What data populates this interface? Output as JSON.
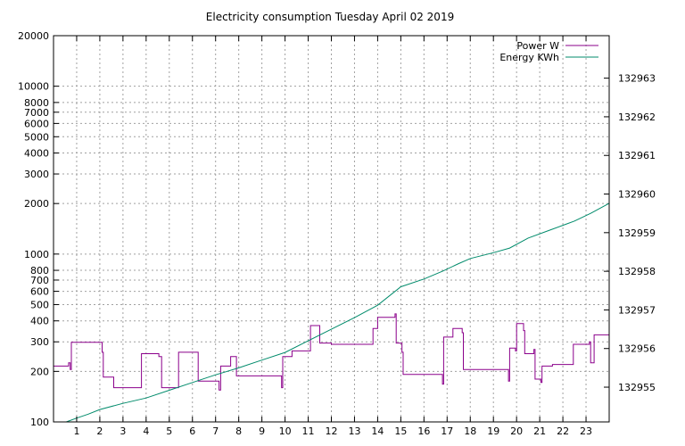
{
  "chart_data": {
    "type": "line",
    "title": "Electricity consumption Tuesday April 02 2019",
    "xlabel": "",
    "ylabel": "",
    "y2label": "",
    "grid": true,
    "legend_position": "top-right",
    "xlim": [
      0,
      24
    ],
    "x_ticks": [
      1,
      2,
      3,
      4,
      5,
      6,
      7,
      8,
      9,
      10,
      11,
      12,
      13,
      14,
      15,
      16,
      17,
      18,
      19,
      20,
      21,
      22,
      23
    ],
    "ylim": [
      100,
      20000
    ],
    "y_scale": "log",
    "y_ticks": [
      100,
      200,
      300,
      400,
      500,
      600,
      700,
      800,
      1000,
      2000,
      3000,
      4000,
      5000,
      6000,
      7000,
      8000,
      10000,
      20000
    ],
    "y2lim": [
      132954.1,
      132964.1
    ],
    "y2_ticks": [
      132955,
      132956,
      132957,
      132958,
      132959,
      132960,
      132961,
      132962,
      132963
    ],
    "series": [
      {
        "name": "Power W",
        "color": "#8b008b",
        "axis": "y",
        "step": true,
        "points": [
          [
            0,
            215
          ],
          [
            0.65,
            215
          ],
          [
            0.65,
            225
          ],
          [
            0.72,
            225
          ],
          [
            0.72,
            205
          ],
          [
            0.77,
            205
          ],
          [
            0.77,
            298
          ],
          [
            2.1,
            298
          ],
          [
            2.1,
            260
          ],
          [
            2.15,
            260
          ],
          [
            2.15,
            185
          ],
          [
            2.6,
            185
          ],
          [
            2.6,
            160
          ],
          [
            3.8,
            160
          ],
          [
            3.8,
            255
          ],
          [
            4.55,
            255
          ],
          [
            4.55,
            245
          ],
          [
            4.67,
            245
          ],
          [
            4.67,
            160
          ],
          [
            5.4,
            160
          ],
          [
            5.4,
            260
          ],
          [
            6.25,
            260
          ],
          [
            6.25,
            175
          ],
          [
            7.15,
            175
          ],
          [
            7.15,
            155
          ],
          [
            7.22,
            155
          ],
          [
            7.22,
            215
          ],
          [
            7.65,
            215
          ],
          [
            7.65,
            245
          ],
          [
            7.9,
            245
          ],
          [
            7.9,
            188
          ],
          [
            9.85,
            188
          ],
          [
            9.85,
            160
          ],
          [
            9.9,
            160
          ],
          [
            9.9,
            245
          ],
          [
            10.3,
            245
          ],
          [
            10.3,
            265
          ],
          [
            11.1,
            265
          ],
          [
            11.1,
            375
          ],
          [
            11.5,
            375
          ],
          [
            11.5,
            295
          ],
          [
            12.0,
            295
          ],
          [
            12.0,
            290
          ],
          [
            13.8,
            290
          ],
          [
            13.8,
            360
          ],
          [
            14.0,
            360
          ],
          [
            14.0,
            420
          ],
          [
            14.75,
            420
          ],
          [
            14.75,
            440
          ],
          [
            14.8,
            440
          ],
          [
            14.8,
            295
          ],
          [
            15.05,
            295
          ],
          [
            15.05,
            260
          ],
          [
            15.1,
            260
          ],
          [
            15.1,
            192
          ],
          [
            16.8,
            192
          ],
          [
            16.8,
            168
          ],
          [
            16.85,
            168
          ],
          [
            16.85,
            320
          ],
          [
            17.25,
            320
          ],
          [
            17.25,
            360
          ],
          [
            17.65,
            360
          ],
          [
            17.65,
            340
          ],
          [
            17.7,
            340
          ],
          [
            17.7,
            205
          ],
          [
            19.65,
            205
          ],
          [
            19.65,
            175
          ],
          [
            19.7,
            175
          ],
          [
            19.7,
            275
          ],
          [
            19.95,
            275
          ],
          [
            19.95,
            265
          ],
          [
            20.0,
            265
          ],
          [
            20.0,
            385
          ],
          [
            20.3,
            385
          ],
          [
            20.3,
            350
          ],
          [
            20.35,
            350
          ],
          [
            20.35,
            255
          ],
          [
            20.75,
            255
          ],
          [
            20.75,
            270
          ],
          [
            20.8,
            270
          ],
          [
            20.8,
            180
          ],
          [
            21.05,
            180
          ],
          [
            21.05,
            172
          ],
          [
            21.1,
            172
          ],
          [
            21.1,
            215
          ],
          [
            21.55,
            215
          ],
          [
            21.55,
            220
          ],
          [
            22.45,
            220
          ],
          [
            22.45,
            290
          ],
          [
            23.15,
            290
          ],
          [
            23.15,
            300
          ],
          [
            23.2,
            300
          ],
          [
            23.2,
            225
          ],
          [
            23.35,
            225
          ],
          [
            23.35,
            330
          ],
          [
            24,
            330
          ]
        ]
      },
      {
        "name": "Energy KWh",
        "color": "#008b6b",
        "axis": "y2",
        "step": false,
        "points": [
          [
            0.55,
            132954.1
          ],
          [
            1.0,
            132954.2
          ],
          [
            1.5,
            132954.3
          ],
          [
            2.0,
            132954.42
          ],
          [
            3.0,
            132954.58
          ],
          [
            4.0,
            132954.72
          ],
          [
            5.0,
            132954.92
          ],
          [
            6.0,
            132955.12
          ],
          [
            7.0,
            132955.32
          ],
          [
            8.0,
            132955.5
          ],
          [
            9.0,
            132955.7
          ],
          [
            10.0,
            132955.9
          ],
          [
            11.0,
            132956.2
          ],
          [
            12.0,
            132956.5
          ],
          [
            13.0,
            132956.8
          ],
          [
            14.0,
            132957.12
          ],
          [
            15.0,
            132957.6
          ],
          [
            16.0,
            132957.8
          ],
          [
            16.8,
            132958.0
          ],
          [
            17.5,
            132958.2
          ],
          [
            18.0,
            132958.33
          ],
          [
            19.0,
            132958.48
          ],
          [
            19.7,
            132958.6
          ],
          [
            20.5,
            132958.86
          ],
          [
            21.5,
            132959.08
          ],
          [
            22.5,
            132959.3
          ],
          [
            23.2,
            132959.5
          ],
          [
            24,
            132959.76
          ]
        ]
      }
    ]
  }
}
